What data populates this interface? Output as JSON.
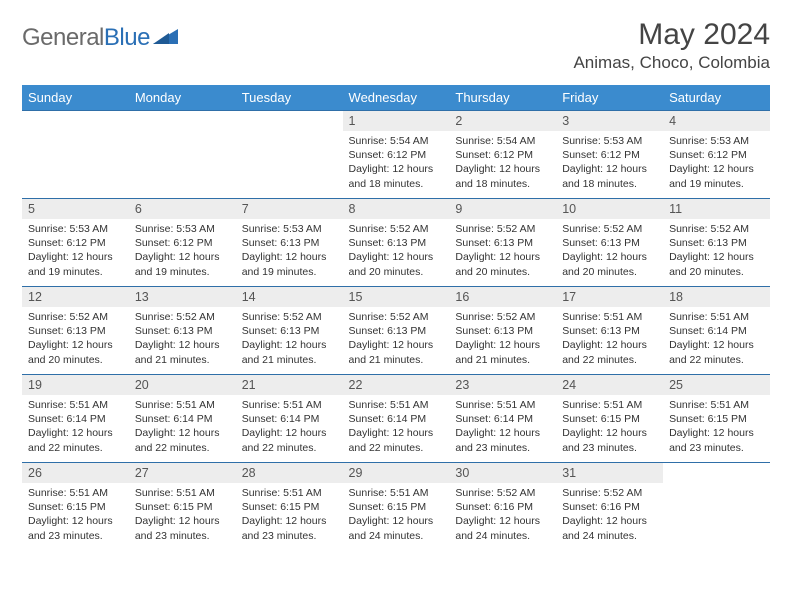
{
  "brand": {
    "part1": "General",
    "part2": "Blue"
  },
  "title": "May 2024",
  "location": "Animas, Choco, Colombia",
  "colors": {
    "header_bg": "#3b8bce",
    "header_text": "#ffffff",
    "row_border": "#2f6fa8",
    "daynum_bg": "#ededed",
    "logo_gray": "#6a6a6a",
    "logo_blue": "#2a6fb5",
    "page_bg": "#ffffff",
    "text": "#333333"
  },
  "typography": {
    "title_fontsize": 30,
    "location_fontsize": 17,
    "dayheader_fontsize": 13,
    "daynum_fontsize": 12.5,
    "info_fontsize": 10.5
  },
  "day_headers": [
    "Sunday",
    "Monday",
    "Tuesday",
    "Wednesday",
    "Thursday",
    "Friday",
    "Saturday"
  ],
  "weeks": [
    [
      {
        "n": "",
        "sunrise": "",
        "sunset": "",
        "daylight": ""
      },
      {
        "n": "",
        "sunrise": "",
        "sunset": "",
        "daylight": ""
      },
      {
        "n": "",
        "sunrise": "",
        "sunset": "",
        "daylight": ""
      },
      {
        "n": "1",
        "sunrise": "5:54 AM",
        "sunset": "6:12 PM",
        "daylight": "12 hours and 18 minutes."
      },
      {
        "n": "2",
        "sunrise": "5:54 AM",
        "sunset": "6:12 PM",
        "daylight": "12 hours and 18 minutes."
      },
      {
        "n": "3",
        "sunrise": "5:53 AM",
        "sunset": "6:12 PM",
        "daylight": "12 hours and 18 minutes."
      },
      {
        "n": "4",
        "sunrise": "5:53 AM",
        "sunset": "6:12 PM",
        "daylight": "12 hours and 19 minutes."
      }
    ],
    [
      {
        "n": "5",
        "sunrise": "5:53 AM",
        "sunset": "6:12 PM",
        "daylight": "12 hours and 19 minutes."
      },
      {
        "n": "6",
        "sunrise": "5:53 AM",
        "sunset": "6:12 PM",
        "daylight": "12 hours and 19 minutes."
      },
      {
        "n": "7",
        "sunrise": "5:53 AM",
        "sunset": "6:13 PM",
        "daylight": "12 hours and 19 minutes."
      },
      {
        "n": "8",
        "sunrise": "5:52 AM",
        "sunset": "6:13 PM",
        "daylight": "12 hours and 20 minutes."
      },
      {
        "n": "9",
        "sunrise": "5:52 AM",
        "sunset": "6:13 PM",
        "daylight": "12 hours and 20 minutes."
      },
      {
        "n": "10",
        "sunrise": "5:52 AM",
        "sunset": "6:13 PM",
        "daylight": "12 hours and 20 minutes."
      },
      {
        "n": "11",
        "sunrise": "5:52 AM",
        "sunset": "6:13 PM",
        "daylight": "12 hours and 20 minutes."
      }
    ],
    [
      {
        "n": "12",
        "sunrise": "5:52 AM",
        "sunset": "6:13 PM",
        "daylight": "12 hours and 20 minutes."
      },
      {
        "n": "13",
        "sunrise": "5:52 AM",
        "sunset": "6:13 PM",
        "daylight": "12 hours and 21 minutes."
      },
      {
        "n": "14",
        "sunrise": "5:52 AM",
        "sunset": "6:13 PM",
        "daylight": "12 hours and 21 minutes."
      },
      {
        "n": "15",
        "sunrise": "5:52 AM",
        "sunset": "6:13 PM",
        "daylight": "12 hours and 21 minutes."
      },
      {
        "n": "16",
        "sunrise": "5:52 AM",
        "sunset": "6:13 PM",
        "daylight": "12 hours and 21 minutes."
      },
      {
        "n": "17",
        "sunrise": "5:51 AM",
        "sunset": "6:13 PM",
        "daylight": "12 hours and 22 minutes."
      },
      {
        "n": "18",
        "sunrise": "5:51 AM",
        "sunset": "6:14 PM",
        "daylight": "12 hours and 22 minutes."
      }
    ],
    [
      {
        "n": "19",
        "sunrise": "5:51 AM",
        "sunset": "6:14 PM",
        "daylight": "12 hours and 22 minutes."
      },
      {
        "n": "20",
        "sunrise": "5:51 AM",
        "sunset": "6:14 PM",
        "daylight": "12 hours and 22 minutes."
      },
      {
        "n": "21",
        "sunrise": "5:51 AM",
        "sunset": "6:14 PM",
        "daylight": "12 hours and 22 minutes."
      },
      {
        "n": "22",
        "sunrise": "5:51 AM",
        "sunset": "6:14 PM",
        "daylight": "12 hours and 22 minutes."
      },
      {
        "n": "23",
        "sunrise": "5:51 AM",
        "sunset": "6:14 PM",
        "daylight": "12 hours and 23 minutes."
      },
      {
        "n": "24",
        "sunrise": "5:51 AM",
        "sunset": "6:15 PM",
        "daylight": "12 hours and 23 minutes."
      },
      {
        "n": "25",
        "sunrise": "5:51 AM",
        "sunset": "6:15 PM",
        "daylight": "12 hours and 23 minutes."
      }
    ],
    [
      {
        "n": "26",
        "sunrise": "5:51 AM",
        "sunset": "6:15 PM",
        "daylight": "12 hours and 23 minutes."
      },
      {
        "n": "27",
        "sunrise": "5:51 AM",
        "sunset": "6:15 PM",
        "daylight": "12 hours and 23 minutes."
      },
      {
        "n": "28",
        "sunrise": "5:51 AM",
        "sunset": "6:15 PM",
        "daylight": "12 hours and 23 minutes."
      },
      {
        "n": "29",
        "sunrise": "5:51 AM",
        "sunset": "6:15 PM",
        "daylight": "12 hours and 24 minutes."
      },
      {
        "n": "30",
        "sunrise": "5:52 AM",
        "sunset": "6:16 PM",
        "daylight": "12 hours and 24 minutes."
      },
      {
        "n": "31",
        "sunrise": "5:52 AM",
        "sunset": "6:16 PM",
        "daylight": "12 hours and 24 minutes."
      },
      {
        "n": "",
        "sunrise": "",
        "sunset": "",
        "daylight": ""
      }
    ]
  ],
  "labels": {
    "sunrise": "Sunrise:",
    "sunset": "Sunset:",
    "daylight": "Daylight:"
  }
}
